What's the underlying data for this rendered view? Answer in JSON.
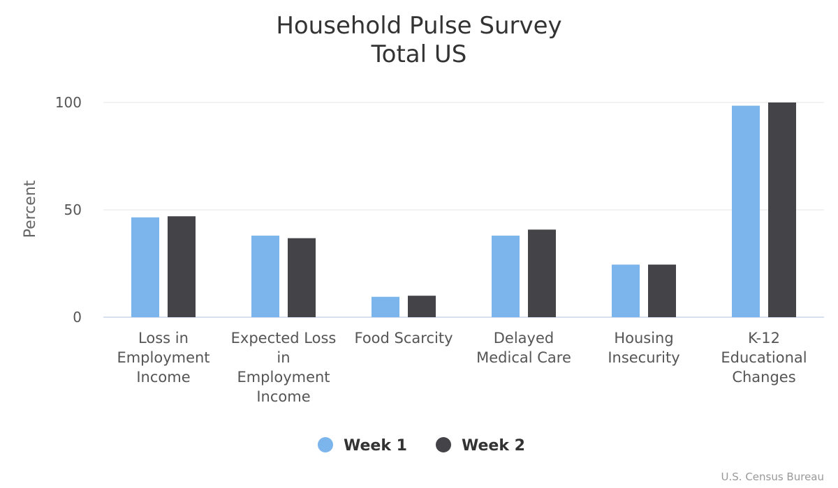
{
  "chart_data": {
    "type": "bar",
    "title": [
      "Household Pulse Survey",
      "Total US"
    ],
    "ylabel": "Percent",
    "xlabel": "",
    "ylim": [
      0,
      100
    ],
    "yticks": [
      "0",
      "50",
      "100"
    ],
    "grid": true,
    "legend_position": "bottom-center",
    "categories": [
      [
        "Loss in",
        "Employment",
        "Income"
      ],
      [
        "Expected Loss",
        "in",
        "Employment",
        "Income"
      ],
      [
        "Food Scarcity"
      ],
      [
        "Delayed",
        "Medical Care"
      ],
      [
        "Housing",
        "Insecurity"
      ],
      [
        "K-12",
        "Educational",
        "Changes"
      ]
    ],
    "series": [
      {
        "name": "Week 1",
        "color": "#7cb5ec",
        "values": [
          46.5,
          38.0,
          9.5,
          38.0,
          24.5,
          98.5
        ]
      },
      {
        "name": "Week 2",
        "color": "#434348",
        "values": [
          47.0,
          36.8,
          10.0,
          40.8,
          24.5,
          100.0
        ]
      }
    ],
    "credit": "U.S. Census Bureau"
  }
}
